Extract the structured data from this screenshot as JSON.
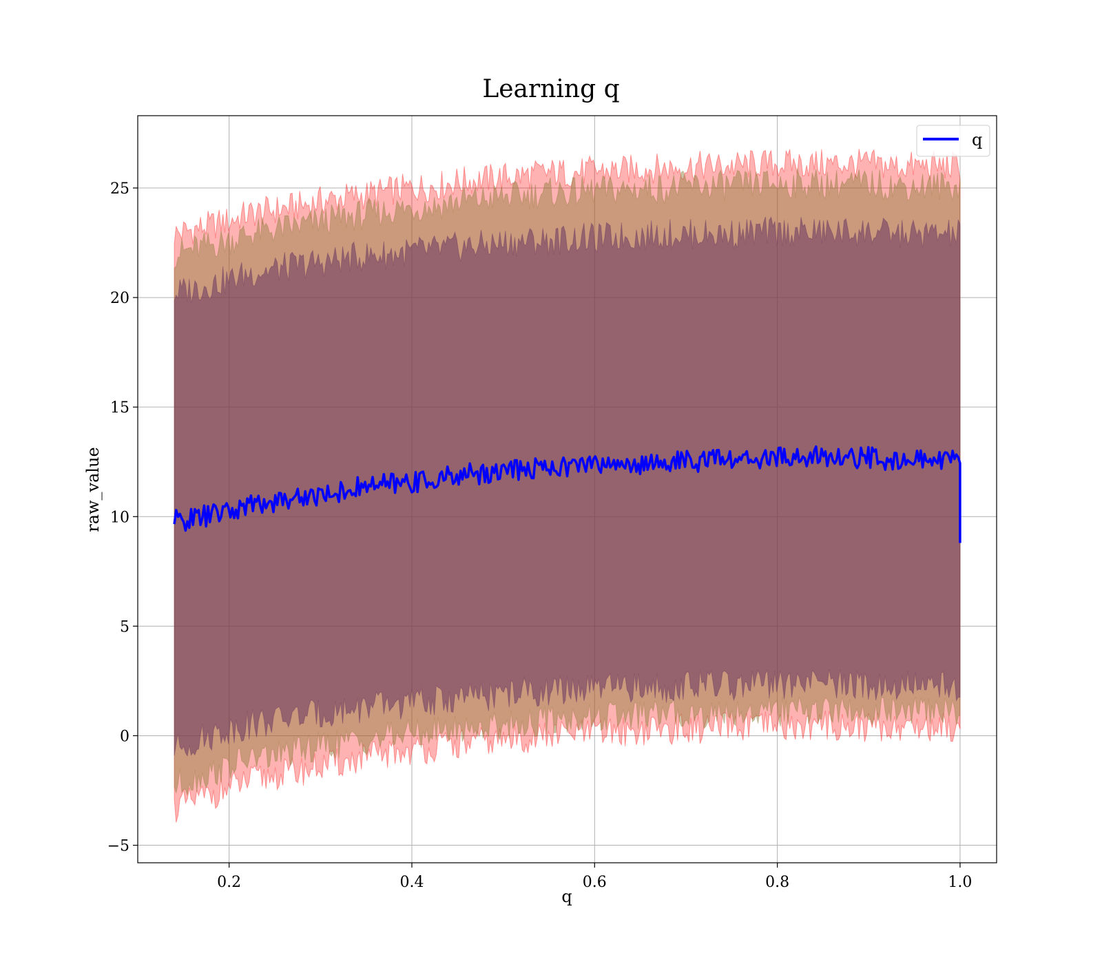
{
  "chart_data": {
    "type": "line",
    "title": "Learning q",
    "xlabel": "q",
    "ylabel": "raw_value",
    "xlim": [
      0.1,
      1.04
    ],
    "ylim": [
      -5.8,
      28.3
    ],
    "xticks": [
      0.2,
      0.4,
      0.6,
      0.8,
      1.0
    ],
    "xtick_labels": [
      "0.2",
      "0.4",
      "0.6",
      "0.8",
      "1.0"
    ],
    "yticks": [
      -5,
      0,
      5,
      10,
      15,
      20,
      25
    ],
    "ytick_labels": [
      "−5",
      "0",
      "5",
      "10",
      "15",
      "20",
      "25"
    ],
    "grid": true,
    "legend": {
      "position": "top-right",
      "entries": [
        "q"
      ]
    },
    "series": [
      {
        "name": "q",
        "color": "#0000ff",
        "x": [
          0.14,
          0.16,
          0.18,
          0.2,
          0.22,
          0.25,
          0.28,
          0.3,
          0.33,
          0.35,
          0.38,
          0.4,
          0.43,
          0.45,
          0.48,
          0.5,
          0.53,
          0.55,
          0.58,
          0.6,
          0.63,
          0.65,
          0.68,
          0.7,
          0.73,
          0.75,
          0.78,
          0.8,
          0.83,
          0.85,
          0.88,
          0.9,
          0.93,
          0.95,
          0.98,
          1.0
        ],
        "y": [
          9.8,
          9.9,
          10.1,
          10.2,
          10.5,
          10.7,
          10.9,
          11.0,
          11.2,
          11.4,
          11.5,
          11.6,
          11.7,
          11.9,
          12.0,
          12.1,
          12.2,
          12.3,
          12.3,
          12.4,
          12.4,
          12.4,
          12.5,
          12.5,
          12.6,
          12.6,
          12.6,
          12.7,
          12.7,
          12.7,
          12.7,
          12.7,
          12.6,
          12.6,
          12.6,
          12.5
        ]
      }
    ],
    "bands": [
      {
        "color": "#ff0000",
        "opacity": 0.3,
        "lower": [
          -3.3,
          -3.0,
          -2.7,
          -2.4,
          -2.1,
          -1.8,
          -1.6,
          -1.4,
          -1.2,
          -1.0,
          -0.8,
          -0.7,
          -0.5,
          -0.4,
          -0.3,
          -0.2,
          -0.1,
          0.0,
          0.1,
          0.1,
          0.2,
          0.2,
          0.3,
          0.3,
          0.3,
          0.4,
          0.4,
          0.4,
          0.4,
          0.5,
          0.4,
          0.4,
          0.4,
          0.4,
          0.4,
          0.4
        ],
        "upper": [
          22.9,
          23.1,
          23.3,
          23.5,
          23.8,
          24.0,
          24.2,
          24.4,
          24.6,
          24.7,
          24.9,
          25.0,
          25.1,
          25.3,
          25.4,
          25.5,
          25.6,
          25.7,
          25.7,
          25.8,
          25.8,
          25.9,
          25.9,
          26.0,
          26.0,
          26.0,
          26.1,
          26.1,
          26.1,
          26.1,
          26.1,
          26.1,
          26.0,
          26.0,
          26.0,
          26.0
        ]
      },
      {
        "color": "#8b7a3a",
        "opacity": 0.45,
        "lower": [
          -2.3,
          -2.0,
          -1.7,
          -1.4,
          -1.1,
          -0.9,
          -0.7,
          -0.5,
          -0.3,
          -0.2,
          0.0,
          0.1,
          0.2,
          0.3,
          0.4,
          0.5,
          0.6,
          0.7,
          0.8,
          0.8,
          0.9,
          0.9,
          1.0,
          1.0,
          1.0,
          1.1,
          1.1,
          1.1,
          1.1,
          1.2,
          1.1,
          1.1,
          1.1,
          1.1,
          1.1,
          1.1
        ],
        "upper": [
          22.0,
          22.2,
          22.4,
          22.6,
          22.9,
          23.1,
          23.3,
          23.5,
          23.7,
          23.8,
          24.0,
          24.1,
          24.2,
          24.4,
          24.5,
          24.6,
          24.7,
          24.8,
          24.8,
          24.9,
          24.9,
          25.0,
          25.0,
          25.1,
          25.1,
          25.1,
          25.2,
          25.2,
          25.2,
          25.2,
          25.2,
          25.2,
          25.1,
          25.1,
          25.1,
          25.1
        ]
      },
      {
        "color": "#5e2d5e",
        "opacity": 0.5,
        "lower": [
          -0.6,
          -0.3,
          0.0,
          0.3,
          0.5,
          0.7,
          0.9,
          1.0,
          1.2,
          1.3,
          1.4,
          1.5,
          1.6,
          1.7,
          1.8,
          1.9,
          2.0,
          2.0,
          2.1,
          2.1,
          2.2,
          2.2,
          2.2,
          2.3,
          2.3,
          2.3,
          2.3,
          2.3,
          2.4,
          2.4,
          2.3,
          2.3,
          2.3,
          2.3,
          2.3,
          2.3
        ],
        "upper": [
          20.2,
          20.4,
          20.6,
          20.8,
          21.1,
          21.3,
          21.5,
          21.6,
          21.8,
          21.9,
          22.0,
          22.1,
          22.2,
          22.3,
          22.4,
          22.5,
          22.6,
          22.6,
          22.7,
          22.7,
          22.8,
          22.8,
          22.9,
          22.9,
          22.9,
          22.9,
          23.0,
          23.0,
          23.0,
          23.0,
          23.0,
          23.0,
          22.9,
          22.9,
          22.9,
          22.9
        ]
      }
    ]
  }
}
